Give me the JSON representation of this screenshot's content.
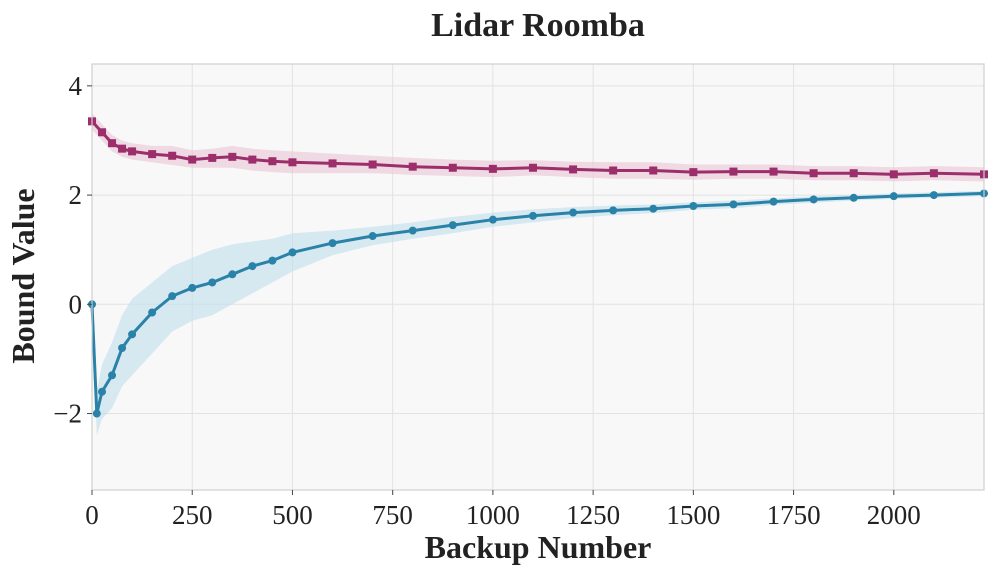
{
  "chart_data": {
    "type": "line",
    "title": "Lidar Roomba",
    "xlabel": "Backup Number",
    "ylabel": "Bound Value",
    "xlim": [
      0,
      2225
    ],
    "ylim": [
      -3.4,
      4.4
    ],
    "xticks": [
      0,
      250,
      500,
      750,
      1000,
      1250,
      1500,
      1750,
      2000
    ],
    "xtick_labels": [
      "0",
      "250",
      "500",
      "750",
      "1000",
      "1250",
      "1500",
      "1750",
      "2000"
    ],
    "yticks": [
      -2,
      0,
      2,
      4
    ],
    "ytick_labels": [
      "−2",
      "0",
      "2",
      "4"
    ],
    "grid": true,
    "legend": "none",
    "colors": {
      "upper": "#9c2f6b",
      "upper_band": "#e9c4d6",
      "lower": "#2b82a8",
      "lower_band": "#bfe0ec",
      "plot_bg": "#f8f8f8",
      "grid": "#e2e2e2"
    },
    "series": [
      {
        "key": "upper",
        "marker": "square",
        "x": [
          0,
          25,
          50,
          75,
          100,
          150,
          200,
          250,
          300,
          350,
          400,
          450,
          500,
          600,
          700,
          800,
          900,
          1000,
          1100,
          1200,
          1300,
          1400,
          1500,
          1600,
          1700,
          1800,
          1900,
          2000,
          2100,
          2225
        ],
        "y": [
          3.35,
          3.15,
          2.95,
          2.85,
          2.8,
          2.75,
          2.72,
          2.65,
          2.68,
          2.7,
          2.65,
          2.62,
          2.6,
          2.58,
          2.56,
          2.52,
          2.5,
          2.48,
          2.5,
          2.47,
          2.45,
          2.45,
          2.42,
          2.43,
          2.43,
          2.4,
          2.4,
          2.38,
          2.4,
          2.38
        ],
        "band_lower": [
          3.2,
          3.0,
          2.8,
          2.7,
          2.65,
          2.6,
          2.55,
          2.5,
          2.5,
          2.5,
          2.45,
          2.42,
          2.4,
          2.4,
          2.4,
          2.37,
          2.35,
          2.33,
          2.36,
          2.33,
          2.3,
          2.3,
          2.28,
          2.3,
          2.3,
          2.27,
          2.27,
          2.25,
          2.27,
          2.25
        ],
        "band_upper": [
          3.5,
          3.3,
          3.1,
          3.0,
          2.95,
          2.9,
          2.9,
          2.82,
          2.85,
          2.9,
          2.85,
          2.82,
          2.8,
          2.76,
          2.72,
          2.68,
          2.65,
          2.63,
          2.64,
          2.61,
          2.6,
          2.6,
          2.56,
          2.56,
          2.56,
          2.53,
          2.53,
          2.51,
          2.53,
          2.51
        ]
      },
      {
        "key": "lower",
        "marker": "circle",
        "x": [
          0,
          12,
          25,
          50,
          75,
          100,
          150,
          200,
          250,
          300,
          350,
          400,
          450,
          500,
          600,
          700,
          800,
          900,
          1000,
          1100,
          1200,
          1300,
          1400,
          1500,
          1600,
          1700,
          1800,
          1900,
          2000,
          2100,
          2225
        ],
        "y": [
          0.0,
          -2.0,
          -1.6,
          -1.3,
          -0.8,
          -0.55,
          -0.15,
          0.15,
          0.3,
          0.4,
          0.55,
          0.7,
          0.8,
          0.95,
          1.12,
          1.25,
          1.35,
          1.45,
          1.55,
          1.62,
          1.68,
          1.72,
          1.75,
          1.8,
          1.83,
          1.88,
          1.92,
          1.95,
          1.98,
          2.0,
          2.03
        ],
        "band_lower": [
          -0.05,
          -2.4,
          -2.1,
          -1.9,
          -1.5,
          -1.3,
          -0.9,
          -0.5,
          -0.3,
          -0.2,
          0.0,
          0.2,
          0.4,
          0.6,
          0.9,
          1.08,
          1.2,
          1.3,
          1.42,
          1.5,
          1.58,
          1.63,
          1.67,
          1.73,
          1.76,
          1.82,
          1.86,
          1.9,
          1.93,
          1.95,
          1.98
        ],
        "band_upper": [
          0.05,
          -1.6,
          -1.1,
          -0.7,
          -0.2,
          0.1,
          0.4,
          0.7,
          0.85,
          1.0,
          1.1,
          1.15,
          1.2,
          1.3,
          1.35,
          1.42,
          1.5,
          1.6,
          1.68,
          1.74,
          1.78,
          1.81,
          1.83,
          1.87,
          1.9,
          1.94,
          1.98,
          2.0,
          2.03,
          2.05,
          2.08
        ]
      }
    ]
  }
}
